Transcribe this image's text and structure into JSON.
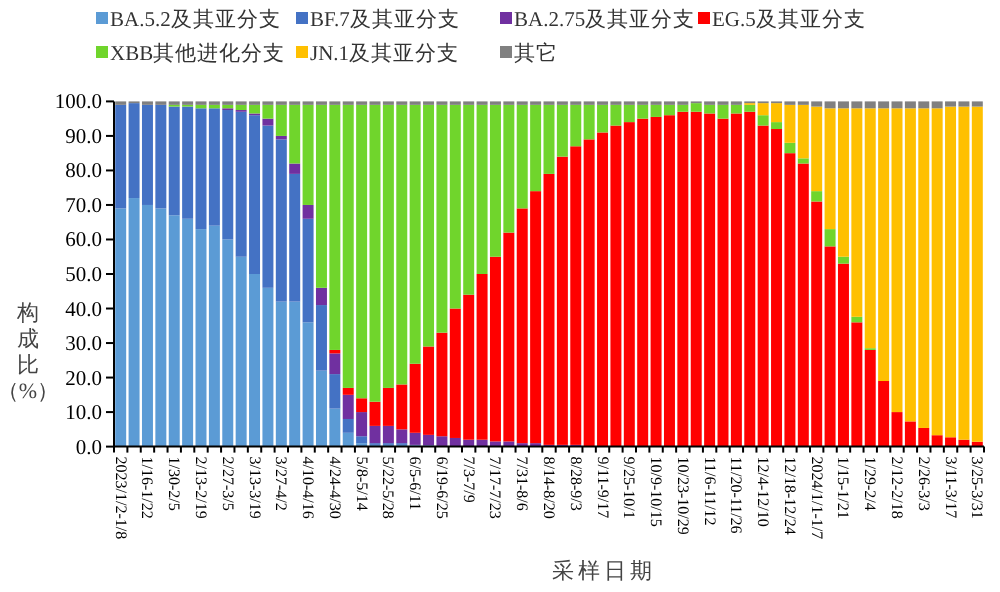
{
  "chart_data": {
    "type": "bar",
    "stacked": true,
    "xlabel": "采样日期",
    "ylabel": "构成比（%）",
    "legend": "top",
    "grid": false,
    "categories": [
      "2023/1/2-1/8",
      null,
      "1/16-1/22",
      null,
      "1/30-2/5",
      null,
      "2/13-2/19",
      null,
      "2/27-3/5",
      null,
      "3/13-3/19",
      null,
      "3/27-4/2",
      null,
      "4/10-4/16",
      null,
      "4/24-4/30",
      null,
      "5/8-5/14",
      null,
      "5/22-5/28",
      null,
      "6/5-6/11",
      null,
      "6/19-6/25",
      null,
      "7/3-7/9",
      null,
      "7/17-7/23",
      null,
      "7/31-8/6",
      null,
      "8/14-8/20",
      null,
      "8/28-9/3",
      null,
      "9/11-9/17",
      null,
      "9/25-10/1",
      null,
      "10/9-10/15",
      null,
      "10/23-10/29",
      null,
      "11/6-11/12",
      null,
      "11/20-11/26",
      null,
      "12/4-12/10",
      null,
      "12/18-12/24",
      null,
      "2024/1/1-1/7",
      null,
      "1/15-1/21",
      null,
      "1/29-2/4",
      null,
      "2/12-2/18",
      null,
      "2/26-3/3",
      null,
      "3/11-3/17",
      null,
      "3/25-3/31"
    ],
    "ylim": [
      0,
      100
    ],
    "yticks": [
      {
        "value": 0,
        "label": "0.0"
      },
      {
        "value": 10,
        "label": "10.0"
      },
      {
        "value": 20,
        "label": "20.0"
      },
      {
        "value": 30,
        "label": "30.0"
      },
      {
        "value": 40,
        "label": "40.0"
      },
      {
        "value": 50,
        "label": "50.0"
      },
      {
        "value": 60,
        "label": "60.0"
      },
      {
        "value": 70,
        "label": "70.0"
      },
      {
        "value": 80,
        "label": "80.0"
      },
      {
        "value": 90,
        "label": "90.0"
      },
      {
        "value": 100,
        "label": "100.0"
      }
    ],
    "series": [
      {
        "name": "BA.5.2及其亚分支",
        "color": "#5b9bd5",
        "values": [
          69,
          72,
          70,
          69,
          67,
          66,
          63,
          64,
          60,
          55,
          50,
          46,
          42,
          42,
          36,
          22,
          11,
          4,
          1,
          0.5,
          0.5,
          0.5,
          0.3,
          0.2,
          0,
          0,
          0,
          0,
          0,
          0,
          0,
          0,
          0,
          0,
          0,
          0,
          0,
          0,
          0,
          0,
          0,
          0,
          0,
          0,
          0,
          0,
          0,
          0,
          0,
          0,
          0,
          0,
          0,
          0,
          0,
          0,
          0,
          0,
          0,
          0,
          0,
          0,
          0,
          0,
          0
        ]
      },
      {
        "name": "BF.7及其亚分支",
        "color": "#4472c4",
        "values": [
          30,
          27.5,
          29,
          30,
          31.5,
          32.5,
          35,
          34,
          37.5,
          42,
          46,
          47,
          47,
          37,
          30,
          19,
          10,
          4,
          2,
          0.5,
          0.5,
          0.5,
          0.2,
          0.2,
          0.2,
          0,
          0,
          0,
          0,
          0,
          0,
          0,
          0,
          0,
          0,
          0,
          0,
          0,
          0,
          0,
          0,
          0,
          0,
          0,
          0,
          0,
          0,
          0,
          0,
          0,
          0,
          0,
          0,
          0,
          0,
          0,
          0,
          0,
          0,
          0,
          0,
          0,
          0,
          0,
          0
        ]
      },
      {
        "name": "BA.2.75及其亚分支",
        "color": "#7030a0",
        "values": [
          0,
          0,
          0,
          0,
          0,
          0,
          0,
          0,
          0.5,
          0.5,
          0.5,
          2,
          1,
          3,
          4,
          5,
          6,
          7,
          7,
          5,
          5,
          4,
          3.5,
          3,
          2.8,
          2.5,
          2,
          2,
          1.5,
          1.5,
          1,
          1,
          0.5,
          0.5,
          0.5,
          0,
          0,
          0,
          0,
          0,
          0,
          0,
          0,
          0,
          0,
          0,
          0,
          0,
          0,
          0,
          0,
          0,
          0,
          0,
          0,
          0,
          0,
          0,
          0,
          0,
          0,
          0,
          0,
          0,
          0
        ]
      },
      {
        "name": "EG.5及其亚分支",
        "color": "#ff0000",
        "values": [
          0,
          0,
          0,
          0,
          0,
          0,
          0,
          0,
          0,
          0,
          0,
          0,
          0,
          0,
          0,
          0,
          1,
          2,
          4,
          7,
          11,
          13,
          20,
          25.6,
          30,
          37.5,
          42,
          48,
          53.5,
          60.5,
          68,
          73,
          78.5,
          83.5,
          86.5,
          89,
          91,
          93,
          94,
          95,
          95.5,
          96,
          97,
          97,
          96.5,
          95,
          96.5,
          97,
          93,
          92,
          85,
          82,
          71,
          58,
          53,
          36,
          28,
          19,
          10,
          7.3,
          5.4,
          3.3,
          2.7,
          2,
          1.4
        ]
      },
      {
        "name": "XBB其他进化分支",
        "color": "#70d52c",
        "values": [
          0,
          0,
          0,
          0,
          0.5,
          0.5,
          1,
          1,
          1,
          1.5,
          2.5,
          4,
          9,
          17,
          29,
          53,
          71,
          82,
          85,
          86,
          82,
          81,
          75,
          70,
          66,
          59,
          55,
          49,
          44,
          37,
          30,
          25,
          20,
          15,
          12,
          10,
          8,
          6,
          5,
          4,
          3.5,
          3,
          2,
          2.5,
          2.5,
          4,
          2.5,
          2,
          3,
          2,
          3,
          1.5,
          3,
          5,
          2,
          1.6,
          0.5,
          0,
          0,
          0,
          0,
          0,
          0,
          0,
          0
        ]
      },
      {
        "name": "JN.1及其亚分支",
        "color": "#ffc000",
        "values": [
          0,
          0,
          0,
          0,
          0,
          0,
          0,
          0,
          0,
          0,
          0,
          0,
          0,
          0,
          0,
          0,
          0,
          0,
          0,
          0,
          0,
          0,
          0,
          0,
          0,
          0,
          0,
          0,
          0,
          0,
          0,
          0,
          0,
          0,
          0,
          0,
          0,
          0,
          0,
          0,
          0,
          0,
          0,
          0,
          0,
          0,
          0,
          0.5,
          3.5,
          5.5,
          11,
          15.5,
          24.5,
          35,
          43,
          60.4,
          69.5,
          79,
          88,
          90.7,
          92.6,
          94.7,
          95.8,
          96.5,
          97.1
        ]
      },
      {
        "name": "其它",
        "color": "#808080",
        "values": [
          1,
          0.5,
          1,
          1,
          1,
          1,
          1,
          1,
          1,
          1,
          1,
          1,
          1,
          1,
          1,
          1,
          1,
          1,
          1,
          1,
          1,
          1,
          1,
          1,
          1,
          1,
          1,
          1,
          1,
          1,
          1,
          1,
          1,
          1,
          1,
          1,
          1,
          1,
          1,
          1,
          1,
          1,
          1,
          0.5,
          1,
          1,
          1,
          0.5,
          0.5,
          0.5,
          1,
          1,
          1.5,
          2,
          2,
          2,
          2,
          2,
          2,
          2,
          2,
          2,
          1.5,
          1.5,
          1.5
        ]
      }
    ]
  }
}
